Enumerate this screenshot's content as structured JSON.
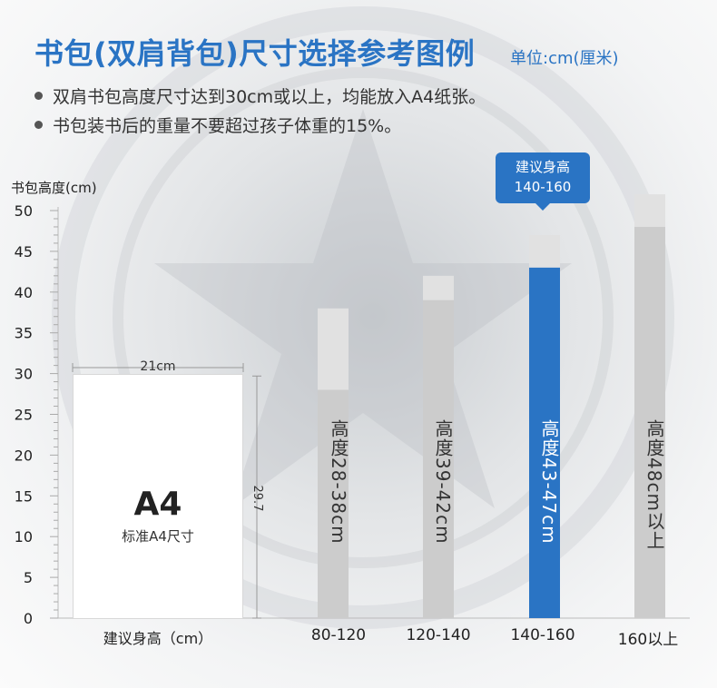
{
  "title": "书包(双肩背包)尺寸选择参考图例",
  "unit": "单位:cm(厘米)",
  "bullets": [
    "双肩书包高度尺寸达到30cm或以上，均能放入A4纸张。",
    "书包装书后的重量不要超过孩子体重的15%。"
  ],
  "callout": {
    "line1": "建议身高",
    "line2": "140-160"
  },
  "a4": {
    "title": "A4",
    "subtitle": "标准A4尺寸",
    "width_label": "21cm",
    "height_label": "29.7",
    "width_cm": 21,
    "height_cm": 29.7
  },
  "colors": {
    "brand": "#2a74c4",
    "bar_dark": "#cccccc",
    "bar_light": "#e1e1e1",
    "highlight": "#2a74c4",
    "highlight_top": "#e1e1e1"
  },
  "chart_data": {
    "type": "bar",
    "ylabel": "书包高度(cm)",
    "xlabel": "建议身高（cm）",
    "ylim": [
      0,
      50
    ],
    "yticks": [
      0,
      5,
      10,
      15,
      20,
      25,
      30,
      35,
      40,
      45,
      50
    ],
    "categories": [
      "80-120",
      "120-140",
      "140-160",
      "160以上"
    ],
    "range_low": [
      28,
      39,
      43,
      48
    ],
    "range_high": [
      38,
      42,
      47,
      52
    ],
    "bar_labels": [
      "高度28-38cm",
      "高度39-42cm",
      "高度43-47cm",
      "高度48cm以上"
    ],
    "highlight_index": 2
  }
}
